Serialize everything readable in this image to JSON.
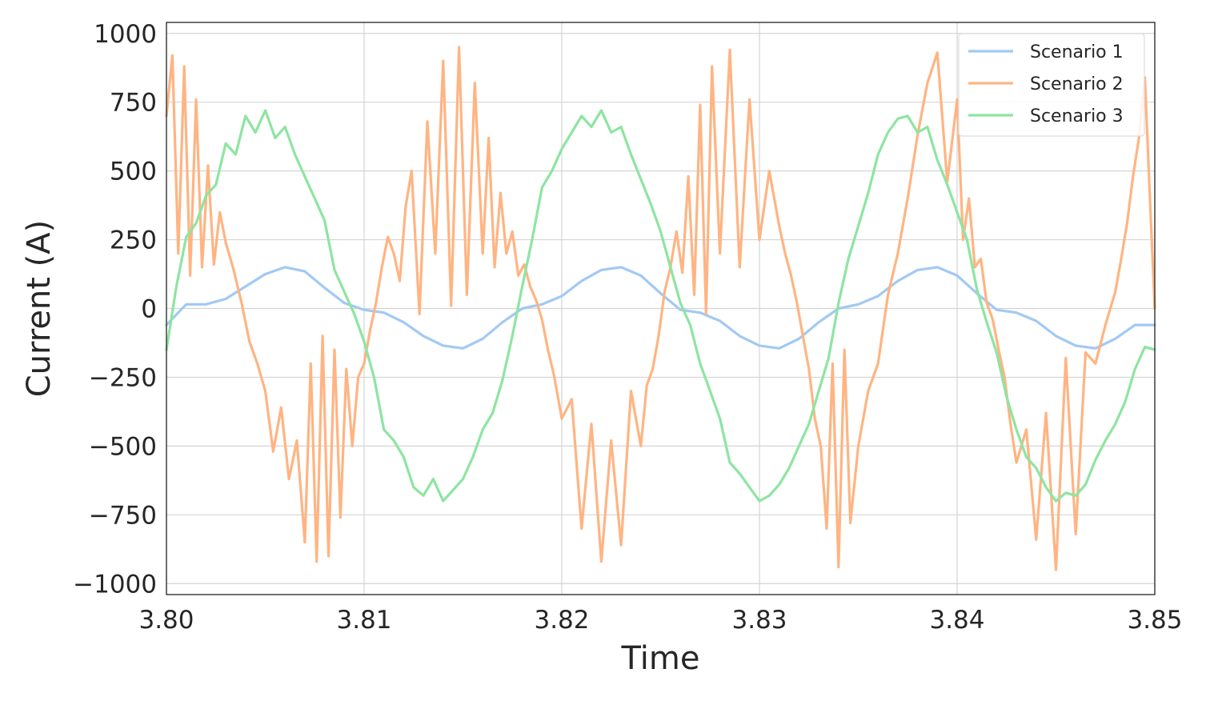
{
  "chart_data": {
    "type": "line",
    "xlabel": "Time",
    "ylabel": "Current (A)",
    "xlim": [
      3.8,
      3.85
    ],
    "ylim": [
      -1040,
      1040
    ],
    "x_ticks": [
      3.8,
      3.81,
      3.82,
      3.83,
      3.84,
      3.85
    ],
    "x_tick_labels": [
      "3.80",
      "3.81",
      "3.82",
      "3.83",
      "3.84",
      "3.85"
    ],
    "y_ticks": [
      1000,
      750,
      500,
      250,
      0,
      -250,
      -500,
      -750,
      -1000
    ],
    "y_tick_labels": [
      "1000",
      "750",
      "500",
      "250",
      "0",
      "−250",
      "−500",
      "−750",
      "−1000"
    ],
    "grid": true,
    "legend_position": "top-right",
    "series": [
      {
        "name": "Scenario 1",
        "color": "#a1c9f4",
        "x": [
          3.8,
          3.801,
          3.802,
          3.803,
          3.804,
          3.805,
          3.806,
          3.807,
          3.808,
          3.809,
          3.81,
          3.811,
          3.812,
          3.813,
          3.814,
          3.815,
          3.816,
          3.817,
          3.818,
          3.819,
          3.82,
          3.821,
          3.822,
          3.823,
          3.824,
          3.825,
          3.826,
          3.827,
          3.828,
          3.829,
          3.83,
          3.831,
          3.832,
          3.833,
          3.834,
          3.835,
          3.836,
          3.837,
          3.838,
          3.839,
          3.84,
          3.841,
          3.842,
          3.843,
          3.844,
          3.845,
          3.846,
          3.847,
          3.848,
          3.849,
          3.85
        ],
        "values": [
          -60,
          15,
          15,
          35,
          80,
          125,
          150,
          135,
          75,
          20,
          -5,
          -15,
          -50,
          -100,
          -135,
          -145,
          -110,
          -50,
          0,
          15,
          45,
          100,
          140,
          150,
          120,
          55,
          -5,
          -15,
          -45,
          -100,
          -135,
          -145,
          -110,
          -50,
          0,
          15,
          45,
          100,
          140,
          150,
          120,
          55,
          -5,
          -15,
          -45,
          -100,
          -135,
          -145,
          -110,
          -60,
          -60
        ]
      },
      {
        "name": "Scenario 2",
        "color": "#ffb482",
        "x": [
          3.8,
          3.8003,
          3.8006,
          3.8009,
          3.8012,
          3.8015,
          3.8018,
          3.8021,
          3.8024,
          3.8027,
          3.803,
          3.8034,
          3.8038,
          3.8042,
          3.8046,
          3.805,
          3.8054,
          3.8058,
          3.8062,
          3.8066,
          3.807,
          3.8073,
          3.8076,
          3.8079,
          3.8082,
          3.8085,
          3.8088,
          3.8091,
          3.8094,
          3.8097,
          3.81,
          3.8103,
          3.8106,
          3.8109,
          3.8112,
          3.8115,
          3.8118,
          3.8121,
          3.8124,
          3.8128,
          3.8132,
          3.8136,
          3.814,
          3.8144,
          3.8148,
          3.8152,
          3.8156,
          3.816,
          3.8163,
          3.8166,
          3.8169,
          3.8172,
          3.8175,
          3.8178,
          3.8181,
          3.8184,
          3.8187,
          3.819,
          3.8193,
          3.8196,
          3.82,
          3.8205,
          3.821,
          3.8215,
          3.822,
          3.8225,
          3.823,
          3.8235,
          3.824,
          3.8243,
          3.8246,
          3.8249,
          3.8252,
          3.8255,
          3.8258,
          3.8261,
          3.8264,
          3.8267,
          3.827,
          3.8273,
          3.8276,
          3.828,
          3.8285,
          3.829,
          3.8295,
          3.83,
          3.8305,
          3.831,
          3.8313,
          3.8316,
          3.8319,
          3.8322,
          3.8325,
          3.8328,
          3.8331,
          3.8334,
          3.8337,
          3.834,
          3.8343,
          3.8346,
          3.835,
          3.8355,
          3.836,
          3.8365,
          3.837,
          3.8375,
          3.838,
          3.8385,
          3.839,
          3.8395,
          3.84,
          3.8403,
          3.8406,
          3.8409,
          3.8412,
          3.8415,
          3.8418,
          3.8421,
          3.8424,
          3.8427,
          3.843,
          3.8435,
          3.844,
          3.8445,
          3.845,
          3.8455,
          3.846,
          3.8465,
          3.847,
          3.8475,
          3.848,
          3.8483,
          3.8486,
          3.8489,
          3.8492,
          3.8495,
          3.8498,
          3.85
        ],
        "values": [
          700,
          920,
          200,
          880,
          120,
          760,
          150,
          520,
          160,
          350,
          240,
          140,
          20,
          -120,
          -200,
          -300,
          -520,
          -360,
          -620,
          -480,
          -850,
          -200,
          -920,
          -100,
          -900,
          -150,
          -760,
          -220,
          -500,
          -250,
          -200,
          -80,
          20,
          150,
          260,
          200,
          100,
          370,
          500,
          -20,
          680,
          200,
          900,
          10,
          950,
          50,
          820,
          200,
          620,
          150,
          420,
          200,
          280,
          120,
          160,
          80,
          30,
          -40,
          -150,
          -240,
          -400,
          -330,
          -800,
          -420,
          -920,
          -480,
          -860,
          -300,
          -500,
          -280,
          -220,
          -100,
          60,
          150,
          280,
          130,
          480,
          50,
          740,
          -20,
          880,
          200,
          940,
          150,
          760,
          250,
          500,
          300,
          200,
          120,
          20,
          -100,
          -220,
          -400,
          -500,
          -800,
          -200,
          -940,
          -150,
          -780,
          -500,
          -300,
          -200,
          50,
          200,
          400,
          630,
          820,
          930,
          460,
          760,
          250,
          400,
          150,
          180,
          20,
          -40,
          -150,
          -250,
          -420,
          -560,
          -440,
          -840,
          -380,
          -950,
          -180,
          -820,
          -160,
          -200,
          -60,
          60,
          180,
          310,
          480,
          620,
          840,
          320,
          0
        ]
      },
      {
        "name": "Scenario 3",
        "color": "#8de5a1",
        "x": [
          3.8,
          3.8005,
          3.801,
          3.8015,
          3.802,
          3.8025,
          3.803,
          3.8035,
          3.804,
          3.8045,
          3.805,
          3.8055,
          3.806,
          3.8065,
          3.807,
          3.8075,
          3.808,
          3.8085,
          3.809,
          3.8095,
          3.81,
          3.8105,
          3.811,
          3.8115,
          3.812,
          3.8125,
          3.813,
          3.8135,
          3.814,
          3.8145,
          3.815,
          3.8155,
          3.816,
          3.8165,
          3.817,
          3.8175,
          3.818,
          3.8185,
          3.819,
          3.8195,
          3.82,
          3.8205,
          3.821,
          3.8215,
          3.822,
          3.8225,
          3.823,
          3.8235,
          3.824,
          3.8245,
          3.825,
          3.8255,
          3.826,
          3.8265,
          3.827,
          3.8275,
          3.828,
          3.8285,
          3.829,
          3.8295,
          3.83,
          3.8305,
          3.831,
          3.8315,
          3.832,
          3.8325,
          3.833,
          3.8335,
          3.834,
          3.8345,
          3.835,
          3.8355,
          3.836,
          3.8365,
          3.837,
          3.8375,
          3.838,
          3.8385,
          3.839,
          3.8395,
          3.84,
          3.8405,
          3.841,
          3.8415,
          3.842,
          3.8425,
          3.843,
          3.8435,
          3.844,
          3.8445,
          3.845,
          3.8455,
          3.846,
          3.8465,
          3.847,
          3.8475,
          3.848,
          3.8485,
          3.849,
          3.8495,
          3.85
        ],
        "values": [
          -150,
          80,
          260,
          310,
          410,
          450,
          600,
          560,
          700,
          640,
          720,
          620,
          660,
          560,
          480,
          400,
          320,
          140,
          60,
          -20,
          -120,
          -250,
          -440,
          -480,
          -540,
          -650,
          -680,
          -620,
          -700,
          -660,
          -620,
          -540,
          -440,
          -380,
          -260,
          -100,
          80,
          250,
          440,
          500,
          580,
          640,
          700,
          660,
          720,
          640,
          660,
          560,
          470,
          380,
          280,
          150,
          20,
          -60,
          -200,
          -300,
          -400,
          -560,
          -600,
          -650,
          -700,
          -680,
          -640,
          -580,
          -500,
          -420,
          -300,
          -180,
          20,
          180,
          300,
          420,
          560,
          640,
          690,
          700,
          640,
          660,
          540,
          450,
          350,
          250,
          70,
          -50,
          -160,
          -320,
          -440,
          -540,
          -580,
          -650,
          -700,
          -670,
          -680,
          -640,
          -550,
          -480,
          -420,
          -340,
          -220,
          -140,
          -150
        ]
      }
    ]
  }
}
